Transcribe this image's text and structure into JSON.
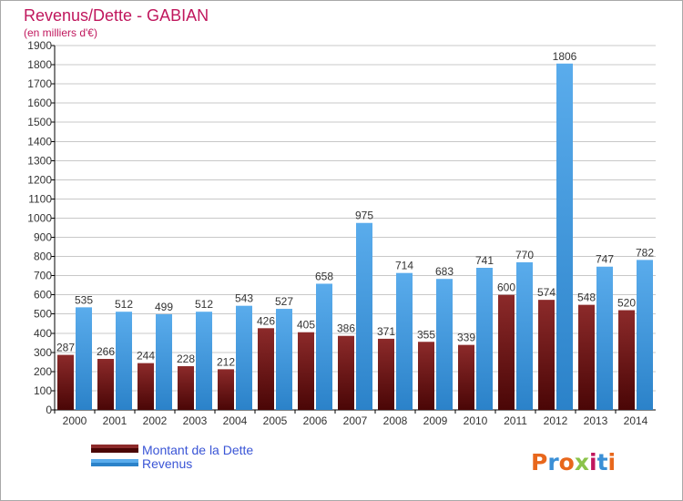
{
  "title": "Revenus/Dette - GABIAN",
  "subtitle": "(en milliers d'€)",
  "brand": "Proxiti",
  "colors": {
    "title": "#c0175d",
    "legend_text": "#3a55d6",
    "debt_dark": "#5b0b0b",
    "debt_light": "#8c2a2a",
    "rev_dark": "#2b82c9",
    "rev_light": "#5aacec",
    "axis": "#000000",
    "grid": "#c8c8c8"
  },
  "chart_data": {
    "type": "bar",
    "categories": [
      "2000",
      "2001",
      "2002",
      "2003",
      "2004",
      "2005",
      "2006",
      "2007",
      "2008",
      "2009",
      "2010",
      "2011",
      "2012",
      "2013",
      "2014"
    ],
    "series": [
      {
        "name": "Montant de la Dette",
        "values": [
          287,
          266,
          244,
          228,
          212,
          426,
          405,
          386,
          371,
          355,
          339,
          600,
          574,
          548,
          520
        ]
      },
      {
        "name": "Revenus",
        "values": [
          535,
          512,
          499,
          512,
          543,
          527,
          658,
          975,
          714,
          683,
          741,
          770,
          1806,
          747,
          782
        ]
      }
    ],
    "title": "Revenus/Dette - GABIAN",
    "xlabel": "",
    "ylabel": "",
    "ylim": [
      0,
      1900
    ],
    "yticks": [
      0,
      100,
      200,
      300,
      400,
      500,
      600,
      700,
      800,
      900,
      1000,
      1100,
      1200,
      1300,
      1400,
      1500,
      1600,
      1700,
      1800,
      1900
    ],
    "grid": true,
    "legend": "bottom-left"
  }
}
